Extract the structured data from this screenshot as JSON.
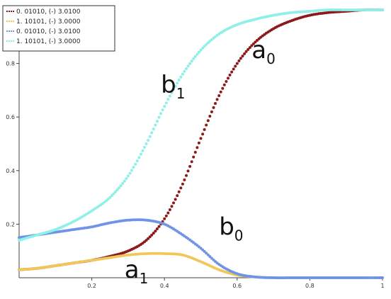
{
  "chart_data": {
    "type": "line",
    "xlim": [
      0,
      1
    ],
    "ylim": [
      0,
      1
    ],
    "x_ticks": [
      "0.2",
      "0.4",
      "0.6",
      "0.8",
      "1"
    ],
    "y_ticks": [
      "0.2",
      "0.4",
      "0.6",
      "0.8"
    ],
    "grid": false,
    "legend_position": "top-left",
    "series": [
      {
        "name": "0. 01010, (-) 3.0100",
        "color": "#8b1a1a",
        "x": [
          0,
          0.05,
          0.1,
          0.15,
          0.2,
          0.25,
          0.3,
          0.35,
          0.4,
          0.45,
          0.5,
          0.55,
          0.6,
          0.65,
          0.7,
          0.75,
          0.8,
          0.85,
          0.9,
          0.95,
          1.0
        ],
        "y": [
          0.03,
          0.035,
          0.045,
          0.055,
          0.065,
          0.08,
          0.1,
          0.14,
          0.22,
          0.35,
          0.52,
          0.68,
          0.8,
          0.88,
          0.93,
          0.96,
          0.98,
          0.99,
          0.995,
          1.0,
          1.0
        ]
      },
      {
        "name": "1. 10101, (-) 3.0000",
        "color": "#f0c75a",
        "x": [
          0,
          0.05,
          0.1,
          0.15,
          0.2,
          0.25,
          0.3,
          0.35,
          0.4,
          0.45,
          0.5,
          0.55,
          0.6,
          0.65,
          0.7,
          0.75,
          0.8,
          0.85,
          0.9,
          0.95,
          1.0
        ],
        "y": [
          0.03,
          0.035,
          0.045,
          0.055,
          0.065,
          0.075,
          0.085,
          0.09,
          0.09,
          0.085,
          0.06,
          0.03,
          0.01,
          0.003,
          0.0,
          0.0,
          0.0,
          0.0,
          0.0,
          0.0,
          0.0
        ]
      },
      {
        "name": "0. 01010, (-) 3.0100",
        "color": "#6f93e6",
        "x": [
          0,
          0.05,
          0.1,
          0.15,
          0.2,
          0.25,
          0.3,
          0.35,
          0.4,
          0.45,
          0.5,
          0.55,
          0.6,
          0.65,
          0.7,
          0.75,
          0.8,
          0.85,
          0.9,
          0.95,
          1.0
        ],
        "y": [
          0.15,
          0.16,
          0.17,
          0.18,
          0.19,
          0.205,
          0.215,
          0.215,
          0.2,
          0.16,
          0.11,
          0.05,
          0.015,
          0.003,
          0.0,
          0.0,
          0.0,
          0.0,
          0.0,
          0.0,
          0.0
        ]
      },
      {
        "name": "1. 10101, (-) 3.0000",
        "color": "#8ff0e8",
        "x": [
          0,
          0.05,
          0.1,
          0.15,
          0.2,
          0.25,
          0.3,
          0.35,
          0.4,
          0.45,
          0.5,
          0.55,
          0.6,
          0.65,
          0.7,
          0.75,
          0.8,
          0.85,
          0.9,
          0.95,
          1.0
        ],
        "y": [
          0.14,
          0.16,
          0.18,
          0.21,
          0.25,
          0.3,
          0.38,
          0.5,
          0.64,
          0.76,
          0.85,
          0.91,
          0.945,
          0.965,
          0.98,
          0.99,
          0.995,
          1.0,
          1.0,
          1.0,
          1.0
        ]
      }
    ],
    "annotations": [
      {
        "main": "a",
        "sub": "0",
        "x": 0.64,
        "y": 0.82
      },
      {
        "main": "b",
        "sub": "1",
        "x": 0.39,
        "y": 0.69
      },
      {
        "main": "b",
        "sub": "0",
        "x": 0.55,
        "y": 0.16
      },
      {
        "main": "a",
        "sub": "1",
        "x": 0.29,
        "y": 0.0
      }
    ]
  }
}
